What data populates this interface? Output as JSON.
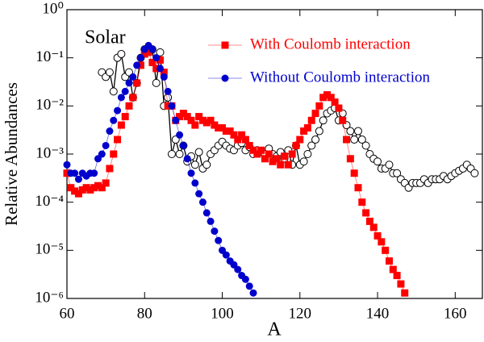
{
  "chart_data": {
    "type": "line",
    "annotation": "Solar",
    "xlabel": "A",
    "ylabel": "Relative Abundances",
    "xlim": [
      60,
      167
    ],
    "xticks": [
      60,
      80,
      100,
      120,
      140,
      160
    ],
    "ylim": [
      1e-06,
      1
    ],
    "log_y": true,
    "grid": false,
    "yticks": [
      {
        "value": 1e-06,
        "label": "10⁻⁶"
      },
      {
        "value": 1e-05,
        "label": "10⁻⁵"
      },
      {
        "value": 0.0001,
        "label": "10⁻⁴"
      },
      {
        "value": 0.001,
        "label": "10⁻³"
      },
      {
        "value": 0.01,
        "label": "10⁻²"
      },
      {
        "value": 0.1,
        "label": "10⁻¹"
      },
      {
        "value": 1,
        "label": "10⁰"
      }
    ],
    "series": [
      {
        "color": "#000000",
        "marker": "open-circle",
        "x": [
          69,
          70,
          71,
          72,
          73,
          74,
          75,
          76,
          77,
          78,
          79,
          80,
          81,
          82,
          83,
          84,
          85,
          86,
          87,
          88,
          89,
          90,
          91,
          92,
          93,
          94,
          95,
          96,
          97,
          98,
          99,
          100,
          101,
          102,
          103,
          104,
          105,
          106,
          107,
          108,
          109,
          110,
          111,
          112,
          113,
          114,
          115,
          116,
          117,
          118,
          119,
          120,
          121,
          122,
          123,
          124,
          125,
          126,
          127,
          128,
          129,
          130,
          131,
          132,
          133,
          134,
          135,
          136,
          137,
          138,
          139,
          140,
          141,
          142,
          143,
          144,
          145,
          146,
          147,
          148,
          149,
          150,
          151,
          152,
          153,
          154,
          155,
          156,
          157,
          158,
          159,
          160,
          161,
          162,
          163,
          164,
          165
        ],
        "values": [
          0.05,
          0.04,
          0.05,
          0.02,
          0.1,
          0.12,
          0.04,
          0.05,
          0.015,
          0.03,
          0.1,
          0.15,
          0.15,
          0.15,
          0.03,
          0.13,
          0.01,
          0.015,
          0.001,
          0.002,
          0.001,
          0.0015,
          0.0007,
          0.0009,
          0.0006,
          0.0011,
          0.0005,
          0.0006,
          0.001,
          0.0012,
          0.0015,
          0.0018,
          0.0015,
          0.0013,
          0.0012,
          0.0015,
          0.0017,
          0.0012,
          0.0014,
          0.001,
          0.0012,
          0.0011,
          0.001,
          0.0013,
          0.001,
          0.0009,
          0.0011,
          0.0008,
          0.0012,
          0.0006,
          0.0015,
          0.0006,
          0.0007,
          0.001,
          0.0015,
          0.002,
          0.003,
          0.005,
          0.007,
          0.008,
          0.009,
          0.005,
          0.007,
          0.004,
          0.003,
          0.002,
          0.003,
          0.002,
          0.0015,
          0.001,
          0.0008,
          0.0007,
          0.0005,
          0.0005,
          0.0006,
          0.0004,
          0.0004,
          0.0003,
          0.00025,
          0.0002,
          0.00025,
          0.00025,
          0.00025,
          0.0003,
          0.00025,
          0.0003,
          0.0003,
          0.0003,
          0.00035,
          0.0003,
          0.00035,
          0.0004,
          0.00045,
          0.0005,
          0.0006,
          0.0005,
          0.0004
        ]
      },
      {
        "name": "With Coulomb interaction",
        "color": "#ff0000",
        "marker": "square",
        "x": [
          60,
          61,
          62,
          63,
          64,
          65,
          66,
          67,
          68,
          69,
          70,
          71,
          72,
          73,
          74,
          75,
          76,
          77,
          78,
          79,
          80,
          81,
          82,
          83,
          84,
          85,
          86,
          87,
          88,
          89,
          90,
          91,
          92,
          93,
          94,
          95,
          96,
          97,
          98,
          99,
          100,
          101,
          102,
          103,
          104,
          105,
          106,
          107,
          108,
          109,
          110,
          111,
          112,
          113,
          114,
          115,
          116,
          117,
          118,
          119,
          120,
          121,
          122,
          123,
          124,
          125,
          126,
          127,
          128,
          129,
          130,
          131,
          132,
          133,
          134,
          135,
          136,
          137,
          138,
          139,
          140,
          141,
          142,
          143,
          144,
          145,
          146,
          147
        ],
        "values": [
          0.0004,
          0.0002,
          0.00017,
          0.00015,
          0.00018,
          0.0002,
          0.00018,
          0.0002,
          0.00022,
          0.0002,
          0.00025,
          0.0005,
          0.001,
          0.002,
          0.004,
          0.006,
          0.01,
          0.015,
          0.03,
          0.07,
          0.12,
          0.13,
          0.08,
          0.06,
          0.09,
          0.05,
          0.01,
          0.01,
          0.005,
          0.006,
          0.007,
          0.006,
          0.005,
          0.004,
          0.006,
          0.005,
          0.0045,
          0.005,
          0.004,
          0.0035,
          0.0035,
          0.003,
          0.003,
          0.0025,
          0.002,
          0.0025,
          0.002,
          0.0015,
          0.0012,
          0.001,
          0.0012,
          0.0008,
          0.001,
          0.0007,
          0.0008,
          0.0006,
          0.0009,
          0.0006,
          0.001,
          0.0015,
          0.002,
          0.003,
          0.0035,
          0.005,
          0.007,
          0.01,
          0.015,
          0.017,
          0.015,
          0.012,
          0.009,
          0.005,
          0.002,
          0.0008,
          0.0004,
          0.0002,
          0.0001,
          6e-05,
          4e-05,
          3e-05,
          2e-05,
          1.5e-05,
          1e-05,
          6e-06,
          4e-06,
          3e-06,
          2e-06,
          1.3e-06
        ]
      },
      {
        "name": "Without Coulomb interaction",
        "color": "#0000cc",
        "marker": "circle",
        "x": [
          60,
          61,
          62,
          63,
          64,
          65,
          66,
          67,
          68,
          69,
          70,
          71,
          72,
          73,
          74,
          75,
          76,
          77,
          78,
          79,
          80,
          81,
          82,
          83,
          84,
          85,
          86,
          87,
          88,
          89,
          90,
          91,
          92,
          93,
          94,
          95,
          96,
          97,
          98,
          99,
          100,
          101,
          102,
          103,
          104,
          105,
          106,
          107,
          108
        ],
        "values": [
          0.0006,
          0.0004,
          0.0004,
          0.0003,
          0.0004,
          0.00035,
          0.0004,
          0.0004,
          0.0008,
          0.001,
          0.0015,
          0.003,
          0.005,
          0.008,
          0.015,
          0.02,
          0.03,
          0.04,
          0.07,
          0.1,
          0.15,
          0.18,
          0.15,
          0.1,
          0.06,
          0.04,
          0.02,
          0.01,
          0.005,
          0.0025,
          0.0015,
          0.0008,
          0.0004,
          0.00025,
          0.00015,
          0.0001,
          6e-05,
          4e-05,
          2.5e-05,
          1.6e-05,
          1e-05,
          8e-06,
          6e-06,
          5e-06,
          4e-06,
          3e-06,
          2.5e-06,
          1.8e-06,
          1.3e-06
        ]
      }
    ]
  }
}
